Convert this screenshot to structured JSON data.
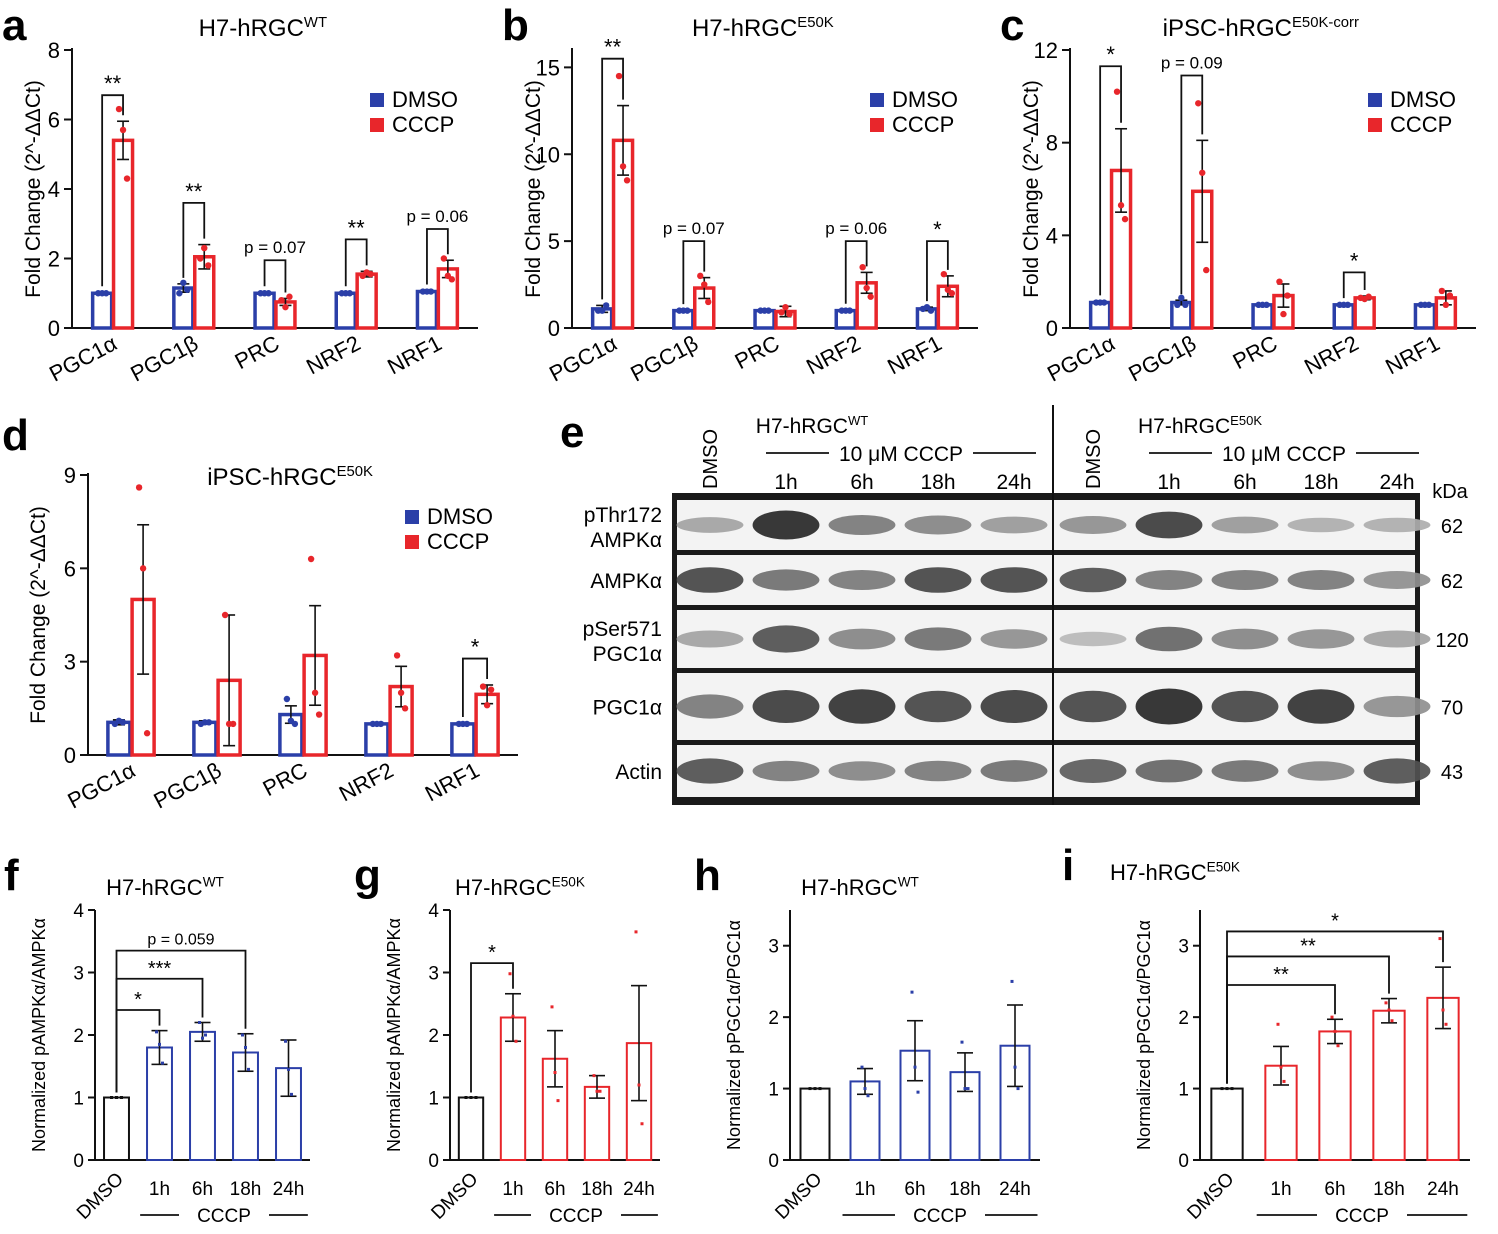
{
  "colors": {
    "dmso": "#2b3fa8",
    "cccp": "#e8262b",
    "black": "#111111",
    "white_bar": "#222222"
  },
  "legend": {
    "dmso": "DMSO",
    "cccp": "CCCP"
  },
  "chart_data": [
    {
      "id": "a",
      "letter": "a",
      "type": "bar",
      "title": "H7-hRGC",
      "title_sup": "WT",
      "ylabel": "Fold Change (2^-ΔΔCt)",
      "ylim": [
        0,
        8
      ],
      "yticks": [
        0,
        2,
        4,
        6,
        8
      ],
      "categories": [
        "PGC1α",
        "PGC1β",
        "PRC",
        "NRF2",
        "NRF1"
      ],
      "series": [
        {
          "name": "DMSO",
          "values": [
            1.0,
            1.15,
            1.0,
            1.0,
            1.05
          ],
          "errors": [
            0.03,
            0.12,
            0.03,
            0.03,
            0.03
          ],
          "points": [
            [
              1.0,
              1.0,
              1.0
            ],
            [
              1.0,
              1.3,
              1.1
            ],
            [
              1.0,
              1.0,
              1.0
            ],
            [
              1.0,
              1.0,
              1.0
            ],
            [
              1.05,
              1.05,
              1.05
            ]
          ]
        },
        {
          "name": "CCCP",
          "values": [
            5.4,
            2.05,
            0.75,
            1.55,
            1.7
          ],
          "errors": [
            0.55,
            0.35,
            0.1,
            0.08,
            0.25
          ],
          "points": [
            [
              6.3,
              5.7,
              4.3
            ],
            [
              2.0,
              2.3,
              1.8
            ],
            [
              0.8,
              0.6,
              0.9
            ],
            [
              1.5,
              1.6,
              1.55
            ],
            [
              2.0,
              1.5,
              1.4
            ]
          ]
        }
      ],
      "annotations": [
        {
          "cat": 0,
          "text": "**",
          "y": 6.7
        },
        {
          "cat": 1,
          "text": "**",
          "y": 3.6
        },
        {
          "cat": 2,
          "text": "p = 0.07",
          "y": 1.95
        },
        {
          "cat": 3,
          "text": "**",
          "y": 2.55
        },
        {
          "cat": 4,
          "text": "p = 0.06",
          "y": 2.85
        }
      ],
      "legend_position": "top-right"
    },
    {
      "id": "b",
      "letter": "b",
      "type": "bar",
      "title": "H7-hRGC",
      "title_sup": "E50K",
      "ylabel": "Fold Change (2^-ΔΔCt)",
      "ylim": [
        0,
        16
      ],
      "yticks": [
        0,
        5,
        10,
        15
      ],
      "categories": [
        "PGC1α",
        "PGC1β",
        "PRC",
        "NRF2",
        "NRF1"
      ],
      "series": [
        {
          "name": "DMSO",
          "values": [
            1.1,
            1.0,
            1.0,
            1.0,
            1.1
          ],
          "errors": [
            0.2,
            0.03,
            0.03,
            0.05,
            0.1
          ],
          "points": [
            [
              1.0,
              1.0,
              1.3
            ],
            [
              1.0,
              1.0,
              1.0
            ],
            [
              1.0,
              1.0,
              1.0
            ],
            [
              1.0,
              1.0,
              1.0
            ],
            [
              1.1,
              1.2,
              1.0
            ]
          ]
        },
        {
          "name": "CCCP",
          "values": [
            10.8,
            2.3,
            0.95,
            2.6,
            2.4
          ],
          "errors": [
            2.0,
            0.6,
            0.3,
            0.6,
            0.6
          ],
          "points": [
            [
              14.5,
              9.3,
              8.5
            ],
            [
              3.0,
              2.5,
              1.5
            ],
            [
              0.9,
              1.2,
              0.8
            ],
            [
              3.5,
              2.3,
              1.8
            ],
            [
              3.1,
              2.2,
              2.0
            ]
          ]
        }
      ],
      "annotations": [
        {
          "cat": 0,
          "text": "**",
          "y": 15.5
        },
        {
          "cat": 1,
          "text": "p = 0.07",
          "y": 5.0
        },
        {
          "cat": 3,
          "text": "p = 0.06",
          "y": 5.0
        },
        {
          "cat": 4,
          "text": "*",
          "y": 5.0
        }
      ],
      "legend_position": "top-right"
    },
    {
      "id": "c",
      "letter": "c",
      "type": "bar",
      "title": "iPSC-hRGC",
      "title_sup": "E50K-corr",
      "ylabel": "Fold Change (2^-ΔΔCt)",
      "ylim": [
        0,
        12
      ],
      "yticks": [
        0,
        4,
        8,
        12
      ],
      "categories": [
        "PGC1α",
        "PGC1β",
        "PRC",
        "NRF2",
        "NRF1"
      ],
      "series": [
        {
          "name": "DMSO",
          "values": [
            1.1,
            1.1,
            1.0,
            1.0,
            1.0
          ],
          "errors": [
            0.05,
            0.1,
            0.03,
            0.03,
            0.03
          ],
          "points": [
            [
              1.1,
              1.1,
              1.1
            ],
            [
              1.0,
              1.3,
              1.0
            ],
            [
              1.0,
              1.0,
              1.0
            ],
            [
              1.0,
              1.0,
              1.0
            ],
            [
              1.0,
              1.0,
              1.0
            ]
          ]
        },
        {
          "name": "CCCP",
          "values": [
            6.8,
            5.9,
            1.4,
            1.3,
            1.3
          ],
          "errors": [
            1.8,
            2.2,
            0.5,
            0.08,
            0.3
          ],
          "points": [
            [
              10.2,
              5.3,
              4.7
            ],
            [
              9.7,
              6.7,
              2.5
            ],
            [
              2.0,
              0.6,
              1.4
            ],
            [
              1.3,
              1.25,
              1.35
            ],
            [
              1.6,
              1.0,
              1.4
            ]
          ]
        }
      ],
      "annotations": [
        {
          "cat": 0,
          "text": "*",
          "y": 11.3
        },
        {
          "cat": 1,
          "text": "p = 0.09",
          "y": 10.9
        },
        {
          "cat": 3,
          "text": "*",
          "y": 2.4
        }
      ],
      "legend_position": "top-right"
    },
    {
      "id": "d",
      "letter": "d",
      "type": "bar",
      "title": "iPSC-hRGC",
      "title_sup": "E50K",
      "ylabel": "Fold Change (2^-ΔΔCt)",
      "ylim": [
        0,
        9
      ],
      "yticks": [
        0,
        3,
        6,
        9
      ],
      "categories": [
        "PGC1α",
        "PGC1β",
        "PRC",
        "NRF2",
        "NRF1"
      ],
      "series": [
        {
          "name": "DMSO",
          "values": [
            1.05,
            1.05,
            1.3,
            1.0,
            1.0
          ],
          "errors": [
            0.08,
            0.05,
            0.28,
            0.03,
            0.03
          ],
          "points": [
            [
              1.0,
              1.1,
              1.05
            ],
            [
              1.0,
              1.05,
              1.05
            ],
            [
              1.8,
              1.1,
              1.0
            ],
            [
              1.0,
              1.0,
              1.0
            ],
            [
              1.0,
              1.0,
              1.0
            ]
          ]
        },
        {
          "name": "CCCP",
          "values": [
            5.0,
            2.4,
            3.2,
            2.2,
            1.95
          ],
          "errors": [
            2.4,
            2.1,
            1.6,
            0.65,
            0.3
          ],
          "points": [
            [
              8.6,
              6.0,
              0.7
            ],
            [
              4.5,
              1.0,
              1.0
            ],
            [
              6.3,
              2.0,
              1.3
            ],
            [
              3.2,
              2.0,
              1.5
            ],
            [
              2.2,
              1.6,
              2.1
            ]
          ]
        }
      ],
      "annotations": [
        {
          "cat": 4,
          "text": "*",
          "y": 3.1
        }
      ],
      "legend_position": "top-right"
    },
    {
      "id": "f",
      "letter": "f",
      "type": "bar",
      "title": "H7-hRGC",
      "title_sup": "WT",
      "ylabel": "Normalized pAMPKα/AMPKα",
      "ylim": [
        0,
        4
      ],
      "yticks": [
        0,
        1,
        2,
        3,
        4
      ],
      "categories": [
        "DMSO",
        "1h",
        "6h",
        "18h",
        "24h"
      ],
      "group_label": "CCCP",
      "bar_colors": [
        "black",
        "dmso",
        "dmso",
        "dmso",
        "dmso"
      ],
      "values": [
        1.0,
        1.8,
        2.05,
        1.72,
        1.47
      ],
      "errors": [
        0.0,
        0.27,
        0.15,
        0.3,
        0.45
      ],
      "points": [
        [
          1.0,
          1.0,
          1.0
        ],
        [
          2.05,
          1.85,
          1.55
        ],
        [
          2.2,
          1.95,
          2.0
        ],
        [
          2.0,
          1.8,
          1.45
        ],
        [
          1.9,
          1.45,
          1.05
        ]
      ],
      "annotations": [
        {
          "from": 0,
          "to": 1,
          "text": "*",
          "y": 2.4
        },
        {
          "from": 0,
          "to": 2,
          "text": "***",
          "y": 2.9
        },
        {
          "from": 0,
          "to": 3,
          "text": "p = 0.059",
          "y": 3.35
        }
      ]
    },
    {
      "id": "g",
      "letter": "g",
      "type": "bar",
      "title": "H7-hRGC",
      "title_sup": "E50K",
      "ylabel": "Normalized pAMPKα/AMPKα",
      "ylim": [
        0,
        4
      ],
      "yticks": [
        0,
        1,
        2,
        3,
        4
      ],
      "categories": [
        "DMSO",
        "1h",
        "6h",
        "18h",
        "24h"
      ],
      "group_label": "CCCP",
      "bar_colors": [
        "black",
        "cccp",
        "cccp",
        "cccp",
        "cccp"
      ],
      "values": [
        1.0,
        2.28,
        1.62,
        1.17,
        1.87
      ],
      "errors": [
        0.0,
        0.38,
        0.45,
        0.18,
        0.92
      ],
      "points": [
        [
          1.0,
          1.0,
          1.0
        ],
        [
          2.98,
          2.3,
          1.9
        ],
        [
          2.45,
          1.4,
          0.95
        ],
        [
          1.35,
          1.1,
          1.1
        ],
        [
          3.65,
          1.2,
          0.58
        ]
      ],
      "annotations": [
        {
          "from": 0,
          "to": 1,
          "text": "*",
          "y": 3.15
        }
      ]
    },
    {
      "id": "h",
      "letter": "h",
      "type": "bar",
      "title": "H7-hRGC",
      "title_sup": "WT",
      "ylabel": "Normalized pPGC1α/PGC1α",
      "ylim": [
        0,
        3.5
      ],
      "yticks": [
        0,
        1,
        2,
        3
      ],
      "categories": [
        "DMSO",
        "1h",
        "6h",
        "18h",
        "24h"
      ],
      "group_label": "CCCP",
      "bar_colors": [
        "black",
        "dmso",
        "dmso",
        "dmso",
        "dmso"
      ],
      "values": [
        1.0,
        1.1,
        1.53,
        1.23,
        1.6
      ],
      "errors": [
        0.0,
        0.18,
        0.42,
        0.27,
        0.57
      ],
      "points": [
        [
          1.0,
          1.0,
          1.0
        ],
        [
          1.3,
          1.0,
          0.9
        ],
        [
          2.35,
          1.3,
          0.95
        ],
        [
          1.65,
          1.0,
          1.0
        ],
        [
          2.5,
          1.3,
          1.0
        ]
      ],
      "annotations": []
    },
    {
      "id": "i",
      "letter": "i",
      "type": "bar",
      "title": "H7-hRGC",
      "title_sup": "E50K",
      "ylabel": "Normalized pPGC1α/PGC1α",
      "ylim": [
        0,
        3.5
      ],
      "yticks": [
        0,
        1,
        2,
        3
      ],
      "categories": [
        "DMSO",
        "1h",
        "6h",
        "18h",
        "24h"
      ],
      "group_label": "CCCP",
      "bar_colors": [
        "black",
        "cccp",
        "cccp",
        "cccp",
        "cccp"
      ],
      "values": [
        1.0,
        1.32,
        1.8,
        2.09,
        2.27
      ],
      "errors": [
        0.0,
        0.27,
        0.17,
        0.17,
        0.43
      ],
      "points": [
        [
          1.0,
          1.0,
          1.0
        ],
        [
          1.9,
          1.3,
          1.1
        ],
        [
          2.0,
          1.8,
          1.6
        ],
        [
          2.2,
          2.1,
          1.95
        ],
        [
          3.1,
          2.1,
          1.9
        ]
      ],
      "annotations": [
        {
          "from": 0,
          "to": 2,
          "text": "**",
          "y": 2.45
        },
        {
          "from": 0,
          "to": 3,
          "text": "**",
          "y": 2.85
        },
        {
          "from": 0,
          "to": 4,
          "text": "*",
          "y": 3.2
        }
      ]
    }
  ],
  "western_blot": {
    "letter": "e",
    "group_wt": {
      "title": "H7-hRGC",
      "sup": "WT",
      "treatment": "10 μM CCCP"
    },
    "group_e50k": {
      "title": "H7-hRGC",
      "sup": "E50K",
      "treatment": "10 μM CCCP"
    },
    "lane_labels": [
      "DMSO",
      "1h",
      "6h",
      "18h",
      "24h"
    ],
    "kda_header": "kDa",
    "rows": [
      {
        "label_line1": "pThr172",
        "label_line2": "AMPKα",
        "kda": "62",
        "intensity": [
          0.35,
          0.95,
          0.55,
          0.5,
          0.4,
          0.45,
          0.85,
          0.4,
          0.3,
          0.3
        ]
      },
      {
        "label_line1": "",
        "label_line2": "AMPKα",
        "kda": "62",
        "intensity": [
          0.8,
          0.6,
          0.55,
          0.8,
          0.8,
          0.75,
          0.55,
          0.55,
          0.55,
          0.45
        ]
      },
      {
        "label_line1": "pSer571",
        "label_line2": "PGC1α",
        "kda": "120",
        "intensity": [
          0.35,
          0.75,
          0.5,
          0.6,
          0.45,
          0.25,
          0.65,
          0.5,
          0.45,
          0.35
        ]
      },
      {
        "label_line1": "",
        "label_line2": "PGC1α",
        "kda": "70",
        "intensity": [
          0.55,
          0.85,
          0.9,
          0.8,
          0.85,
          0.8,
          0.95,
          0.8,
          0.9,
          0.45
        ]
      },
      {
        "label_line1": "",
        "label_line2": "Actin",
        "kda": "43",
        "intensity": [
          0.75,
          0.55,
          0.5,
          0.55,
          0.6,
          0.7,
          0.65,
          0.6,
          0.5,
          0.75
        ]
      }
    ]
  }
}
